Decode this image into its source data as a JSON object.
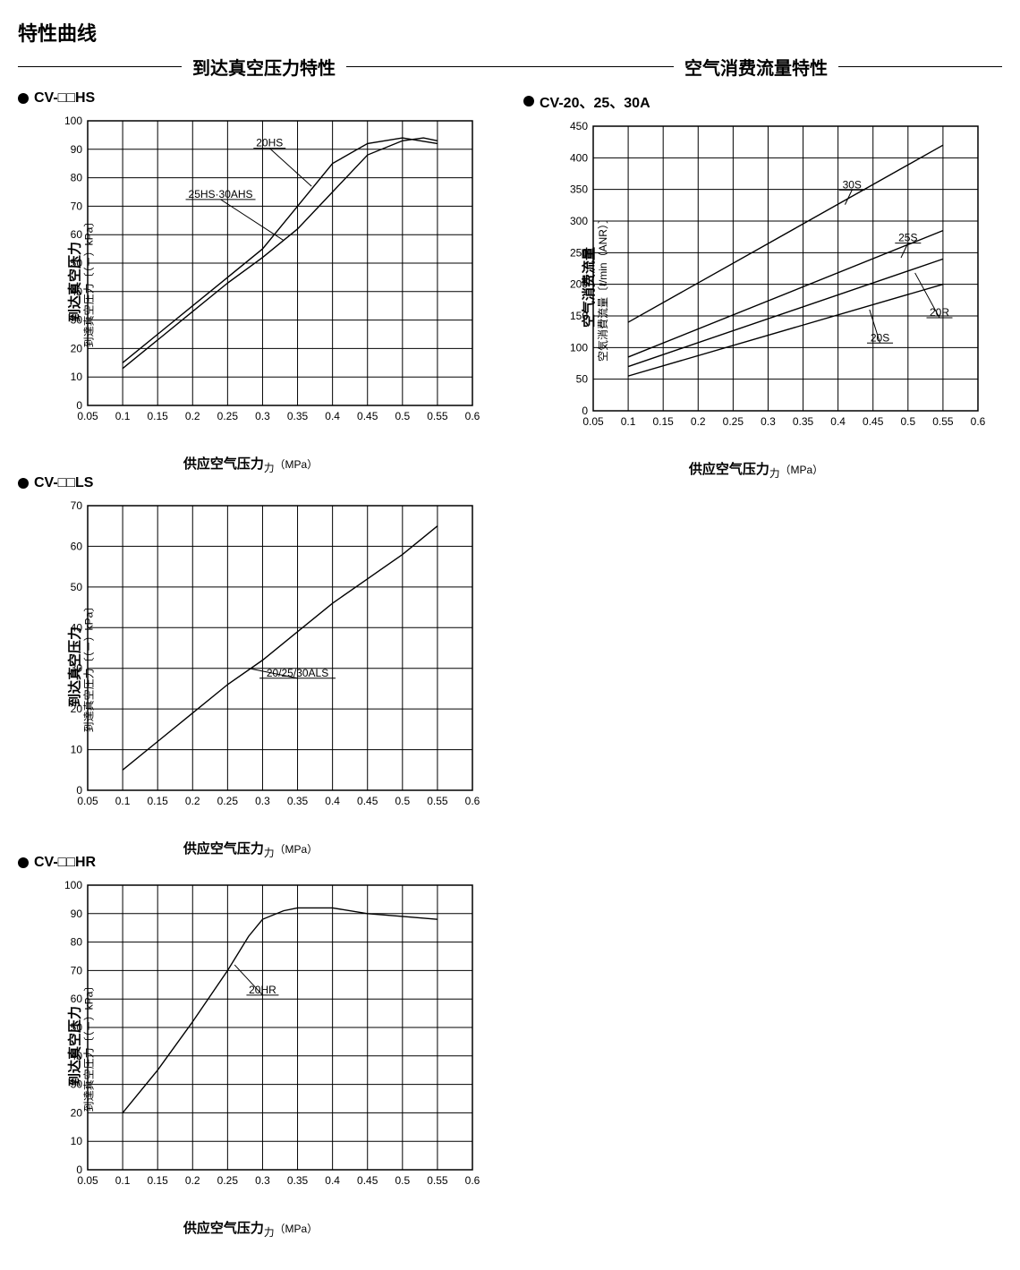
{
  "page_title": "特性曲线",
  "left_section": "到达真空压力特性",
  "right_section": "空气消费流量特性",
  "x_axis": {
    "label_main": "供应空气压力",
    "label_sub": "力",
    "unit": "（MPa）",
    "min": 0.05,
    "max": 0.6,
    "step": 0.05,
    "ticks": [
      "0.05",
      "0.1",
      "0.15",
      "0.2",
      "0.25",
      "0.3",
      "0.35",
      "0.4",
      "0.45",
      "0.5",
      "0.55",
      "0.6"
    ]
  },
  "vacuum_y": {
    "label_main": "到达真空压力",
    "label_sub": "到達真空圧力",
    "unit": "〔（－）kPa〕"
  },
  "flow_y": {
    "label_main": "空气消费流量",
    "label_sub": "空気消費流量",
    "unit": "〔ℓ/min（ANR）〕"
  },
  "colors": {
    "line": "#000000",
    "grid": "#000000",
    "bg": "#ffffff",
    "tick_font": "#000000"
  },
  "stroke": {
    "grid_width": 1,
    "frame_width": 1.5,
    "curve_width": 1.4
  },
  "font": {
    "tick_size": 12,
    "callout_size": 12
  },
  "chart1": {
    "title": "CV-□□HS",
    "ylim": [
      0,
      100
    ],
    "ystep": 10,
    "series": [
      {
        "name": "20HS",
        "callout": "20HS",
        "callout_at": [
          0.31,
          91
        ],
        "line_to": [
          0.37,
          77
        ],
        "pts": [
          [
            0.1,
            15
          ],
          [
            0.15,
            25
          ],
          [
            0.2,
            35
          ],
          [
            0.25,
            45
          ],
          [
            0.3,
            55
          ],
          [
            0.35,
            70
          ],
          [
            0.4,
            85
          ],
          [
            0.45,
            92
          ],
          [
            0.5,
            94
          ],
          [
            0.55,
            92
          ]
        ]
      },
      {
        "name": "25HS-30AHS",
        "callout": "25HS·30AHS",
        "callout_at": [
          0.24,
          73
        ],
        "line_to": [
          0.33,
          58
        ],
        "pts": [
          [
            0.1,
            13
          ],
          [
            0.15,
            23
          ],
          [
            0.2,
            33
          ],
          [
            0.25,
            43
          ],
          [
            0.3,
            52
          ],
          [
            0.35,
            62
          ],
          [
            0.4,
            75
          ],
          [
            0.45,
            88
          ],
          [
            0.5,
            93
          ],
          [
            0.53,
            94
          ],
          [
            0.55,
            93
          ]
        ]
      }
    ]
  },
  "chart2": {
    "title": "CV-□□LS",
    "ylim": [
      0,
      70
    ],
    "ystep": 10,
    "series": [
      {
        "name": "20-25-30ALS",
        "callout": "20/25/30ALS",
        "callout_at": [
          0.35,
          28
        ],
        "line_to": [
          0.28,
          30
        ],
        "pts": [
          [
            0.1,
            5
          ],
          [
            0.15,
            12
          ],
          [
            0.2,
            19
          ],
          [
            0.25,
            26
          ],
          [
            0.3,
            32
          ],
          [
            0.35,
            39
          ],
          [
            0.4,
            46
          ],
          [
            0.45,
            52
          ],
          [
            0.5,
            58
          ],
          [
            0.55,
            65
          ]
        ]
      }
    ]
  },
  "chart3": {
    "title": "CV-□□HR",
    "ylim": [
      0,
      100
    ],
    "ystep": 10,
    "series": [
      {
        "name": "20HR",
        "callout": "20HR",
        "callout_at": [
          0.3,
          62
        ],
        "line_to": [
          0.26,
          72
        ],
        "pts": [
          [
            0.1,
            20
          ],
          [
            0.15,
            35
          ],
          [
            0.2,
            52
          ],
          [
            0.25,
            70
          ],
          [
            0.28,
            82
          ],
          [
            0.3,
            88
          ],
          [
            0.33,
            91
          ],
          [
            0.35,
            92
          ],
          [
            0.4,
            92
          ],
          [
            0.45,
            90
          ],
          [
            0.5,
            89
          ],
          [
            0.55,
            88
          ]
        ]
      }
    ]
  },
  "chart4": {
    "title": "CV-20、25、30A",
    "ylim": [
      0,
      450
    ],
    "ystep": 50,
    "series": [
      {
        "name": "30S",
        "callout": "30S",
        "callout_at": [
          0.42,
          352
        ],
        "line_to": [
          0.41,
          326
        ],
        "pts": [
          [
            0.1,
            140
          ],
          [
            0.55,
            420
          ]
        ]
      },
      {
        "name": "25S",
        "callout": "25S",
        "callout_at": [
          0.5,
          268
        ],
        "line_to": [
          0.49,
          242
        ],
        "pts": [
          [
            0.1,
            85
          ],
          [
            0.55,
            285
          ]
        ]
      },
      {
        "name": "20R",
        "callout": "20R",
        "callout_at": [
          0.545,
          150
        ],
        "line_to": [
          0.51,
          218
        ],
        "pts": [
          [
            0.1,
            70
          ],
          [
            0.55,
            240
          ]
        ]
      },
      {
        "name": "20S",
        "callout": "20S",
        "callout_at": [
          0.46,
          110
        ],
        "line_to": [
          0.445,
          160
        ],
        "pts": [
          [
            0.1,
            55
          ],
          [
            0.55,
            200
          ]
        ]
      }
    ]
  }
}
